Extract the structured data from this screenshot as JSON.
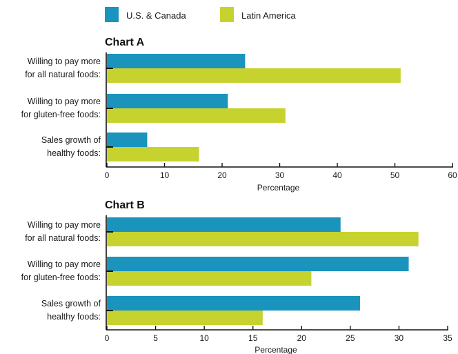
{
  "legend": [
    {
      "label": "U.S. & Canada",
      "color": "#1a94bd"
    },
    {
      "label": "Latin America",
      "color": "#c6d32f"
    }
  ],
  "chart_data": [
    {
      "type": "bar",
      "orientation": "horizontal",
      "title": "Chart A",
      "xlabel": "Percentage",
      "categories": [
        [
          "Willing to pay more",
          "for all natural foods:"
        ],
        [
          "Willing to pay more",
          "for gluten-free foods:"
        ],
        [
          "Sales growth of",
          "healthy foods:"
        ]
      ],
      "series": [
        {
          "name": "U.S. & Canada",
          "values": [
            24,
            21,
            7
          ]
        },
        {
          "name": "Latin America",
          "values": [
            51,
            31,
            16
          ]
        }
      ],
      "xlim": [
        0,
        60
      ],
      "xticks": [
        0,
        10,
        20,
        30,
        40,
        50,
        60
      ],
      "grid": false,
      "legend": "top-left"
    },
    {
      "type": "bar",
      "orientation": "horizontal",
      "title": "Chart B",
      "xlabel": "Percentage",
      "categories": [
        [
          "Willing to pay more",
          "for all natural foods:"
        ],
        [
          "Willing to pay more",
          "for gluten-free foods:"
        ],
        [
          "Sales growth of",
          "healthy foods:"
        ]
      ],
      "series": [
        {
          "name": "U.S. & Canada",
          "values": [
            24,
            31,
            26
          ]
        },
        {
          "name": "Latin America",
          "values": [
            32,
            21,
            16
          ]
        }
      ],
      "xlim": [
        0,
        35
      ],
      "xticks": [
        0,
        5,
        10,
        15,
        20,
        25,
        30,
        35
      ],
      "grid": false,
      "legend": "top-left"
    }
  ]
}
